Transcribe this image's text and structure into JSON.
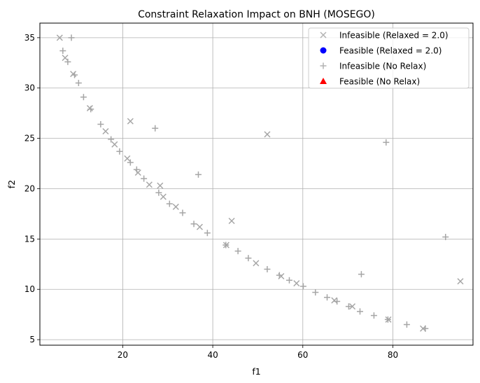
{
  "chart_data": {
    "type": "scatter",
    "title": "Constraint Relaxation Impact on BNH (MOSEGO)",
    "xlabel": "f1",
    "ylabel": "f2",
    "xlim": [
      1.6,
      97.8
    ],
    "ylim": [
      4.45,
      36.45
    ],
    "xticks": [
      20,
      40,
      60,
      80
    ],
    "yticks": [
      5,
      10,
      15,
      20,
      25,
      30,
      35
    ],
    "xtick_labels": [
      "20",
      "40",
      "60",
      "80"
    ],
    "ytick_labels": [
      "5",
      "10",
      "15",
      "20",
      "25",
      "30",
      "35"
    ],
    "grid": true,
    "legend_position": "top-right",
    "series": [
      {
        "name": "Infeasible (Relaxed = 2.0)",
        "marker": "x",
        "color": "#a6a6a6",
        "x": [
          6.0,
          7.2,
          9.0,
          12.7,
          16.2,
          18.2,
          21.0,
          21.7,
          23.4,
          25.9,
          28.3,
          29.0,
          31.8,
          37.1,
          43.0,
          44.2,
          49.6,
          52.1,
          55.2,
          58.6,
          67.0,
          71.0,
          79.0,
          86.7,
          95.0
        ],
        "y": [
          35.0,
          33.0,
          31.4,
          28.0,
          25.7,
          24.4,
          23.0,
          26.7,
          21.6,
          20.4,
          20.3,
          19.2,
          18.2,
          16.2,
          14.4,
          16.8,
          12.6,
          25.4,
          11.3,
          10.6,
          8.9,
          8.3,
          7.0,
          6.1,
          10.8
        ]
      },
      {
        "name": "Feasible (Relaxed = 2.0)",
        "marker": "o",
        "color": "#0000ff",
        "x": [],
        "y": []
      },
      {
        "name": "Infeasible (No Relax)",
        "marker": "+",
        "color": "#a6a6a6",
        "x": [
          6.7,
          7.8,
          8.6,
          9.3,
          10.2,
          11.3,
          12.9,
          15.1,
          17.4,
          19.3,
          21.7,
          23.1,
          24.7,
          27.2,
          28.0,
          30.4,
          33.3,
          35.8,
          36.8,
          38.8,
          42.9,
          45.6,
          47.9,
          52.1,
          54.8,
          57.0,
          60.1,
          62.8,
          65.4,
          67.6,
          70.2,
          72.7,
          73.0,
          75.8,
          78.5,
          78.9,
          83.1,
          87.2,
          91.7
        ],
        "y": [
          33.7,
          32.6,
          35.0,
          31.3,
          30.5,
          29.1,
          27.9,
          26.4,
          24.9,
          23.7,
          22.6,
          21.9,
          21.0,
          26.0,
          19.6,
          18.5,
          17.6,
          16.5,
          21.4,
          15.6,
          14.4,
          13.8,
          13.1,
          12.0,
          11.4,
          10.9,
          10.3,
          9.7,
          9.2,
          8.8,
          8.3,
          7.8,
          11.5,
          7.4,
          24.6,
          7.0,
          6.5,
          6.1,
          15.2
        ]
      },
      {
        "name": "Feasible (No Relax)",
        "marker": "^",
        "color": "#ff0000",
        "x": [],
        "y": []
      }
    ]
  }
}
